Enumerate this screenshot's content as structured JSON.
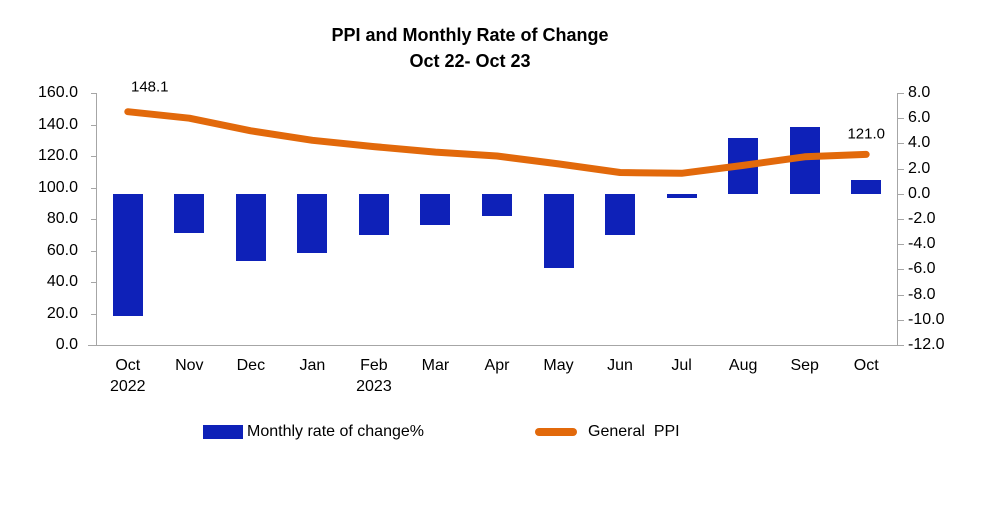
{
  "title": {
    "line1": "PPI and Monthly Rate of Change",
    "line2": "Oct 22- Oct 23"
  },
  "chart_data": {
    "type": "combo-bar-line",
    "background": "#FFFFFF",
    "axis_line_color": "#A6A6A6",
    "grid": "off",
    "categories": [
      "Oct",
      "Nov",
      "Dec",
      "Jan",
      "Feb",
      "Mar",
      "Apr",
      "May",
      "Jun",
      "Jul",
      "Aug",
      "Sep",
      "Oct"
    ],
    "year_labels": [
      {
        "category_index": 0,
        "label": "2022"
      },
      {
        "category_index": 4,
        "label": "2023"
      }
    ],
    "series": [
      {
        "name": "Monthly rate of change%",
        "type": "bar",
        "axis": "right",
        "color": "#0E21B8",
        "values": [
          -9.7,
          -3.1,
          -5.3,
          -4.7,
          -3.3,
          -2.5,
          -1.8,
          -5.9,
          -3.3,
          -0.3,
          4.4,
          5.3,
          1.1
        ]
      },
      {
        "name": "General  PPI",
        "type": "line",
        "axis": "left",
        "color": "#E2690B",
        "values": [
          148.1,
          144.0,
          136.0,
          130.0,
          126.0,
          122.5,
          120.0,
          115.0,
          109.5,
          109.0,
          114.0,
          119.5,
          121.0
        ]
      }
    ],
    "point_labels": [
      {
        "series_index": 1,
        "point_index": 0,
        "text": "148.1",
        "anchor": "above-right"
      },
      {
        "series_index": 1,
        "point_index": 12,
        "text": "121.0",
        "anchor": "above"
      }
    ],
    "left_axis": {
      "min": 0,
      "max": 160,
      "step": 20,
      "tick_labels": [
        "160.0",
        "140.0",
        "120.0",
        "100.0",
        "80.0",
        "60.0",
        "40.0",
        "20.0",
        "0.0"
      ]
    },
    "right_axis": {
      "min": -12,
      "max": 8,
      "step": 2,
      "tick_labels": [
        "8.0",
        "6.0",
        "4.0",
        "2.0",
        "0.0",
        "-2.0",
        "-4.0",
        "-6.0",
        "-8.0",
        "-10.0",
        "-12.0"
      ]
    },
    "legend": {
      "position": "bottom",
      "items": [
        {
          "label": "Monthly rate of change%",
          "swatch": "bar",
          "color": "#0E21B8"
        },
        {
          "label": "General  PPI",
          "swatch": "line",
          "color": "#E2690B"
        }
      ]
    }
  }
}
